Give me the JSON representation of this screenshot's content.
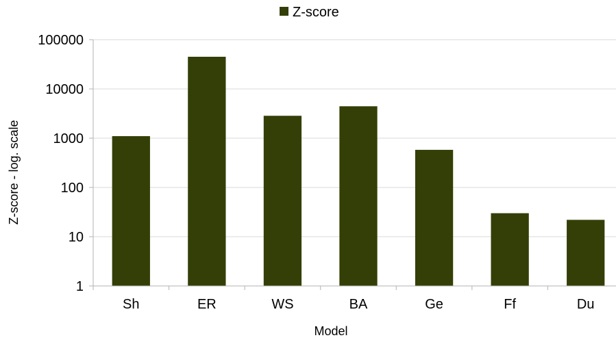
{
  "chart_data": {
    "type": "bar",
    "categories": [
      "Sh",
      "ER",
      "WS",
      "BA",
      "Ge",
      "Ff",
      "Du"
    ],
    "series": [
      {
        "name": "Z-score",
        "values": [
          1100,
          45000,
          2850,
          4450,
          580,
          30,
          22
        ]
      }
    ],
    "xlabel": "Model",
    "ylabel": "Z-score - log. scale",
    "yscale": "log",
    "ylim": [
      1,
      100000
    ],
    "yticks": [
      "1",
      "10",
      "100",
      "1000",
      "10000",
      "100000"
    ],
    "grid": true,
    "legend": "top-center",
    "colors": {
      "bar": "#333f06"
    }
  }
}
